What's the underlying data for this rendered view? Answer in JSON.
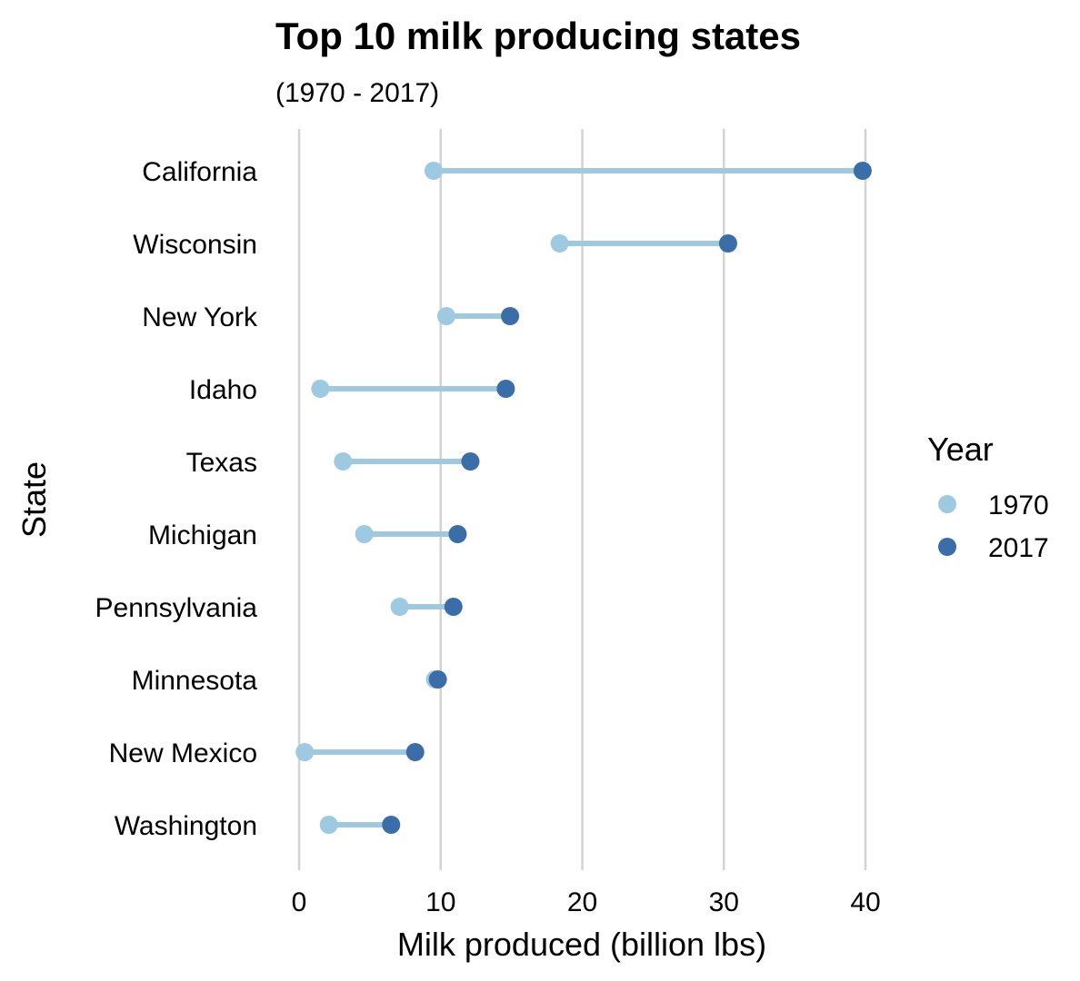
{
  "colors": {
    "1970": "#9ecae1",
    "2017": "#3b6ea8",
    "grid": "#d3d3d3"
  },
  "chart_data": {
    "type": "dumbbell",
    "title": "Top 10 milk producing states",
    "subtitle": "(1970 - 2017)",
    "xlabel": "Milk produced (billion lbs)",
    "ylabel": "State",
    "xlim": [
      0,
      40
    ],
    "xticks": [
      "0",
      "10",
      "20",
      "30",
      "40"
    ],
    "grid": "vertical-major",
    "legend": {
      "title": "Year",
      "position": "right",
      "entries": [
        "1970",
        "2017"
      ]
    },
    "categories": [
      "California",
      "Wisconsin",
      "New York",
      "Idaho",
      "Texas",
      "Michigan",
      "Pennsylvania",
      "Minnesota",
      "New Mexico",
      "Washington"
    ],
    "series": [
      {
        "name": "1970",
        "values": [
          9.5,
          18.4,
          10.4,
          1.5,
          3.1,
          4.6,
          7.1,
          9.6,
          0.4,
          2.1
        ]
      },
      {
        "name": "2017",
        "values": [
          39.8,
          30.3,
          14.9,
          14.6,
          12.1,
          11.2,
          10.9,
          9.8,
          8.2,
          6.5
        ]
      }
    ]
  }
}
